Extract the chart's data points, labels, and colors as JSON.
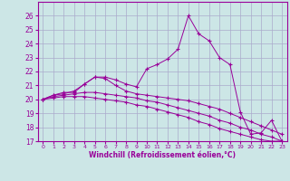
{
  "xlabel": "Windchill (Refroidissement éolien,°C)",
  "x": [
    0,
    1,
    2,
    3,
    4,
    5,
    6,
    7,
    8,
    9,
    10,
    11,
    12,
    13,
    14,
    15,
    16,
    17,
    18,
    19,
    20,
    21,
    22,
    23
  ],
  "line1": [
    20.0,
    20.3,
    20.5,
    20.5,
    21.1,
    21.6,
    21.6,
    21.4,
    21.1,
    20.9,
    22.2,
    22.5,
    22.9,
    23.6,
    26.0,
    24.7,
    24.2,
    23.0,
    22.5,
    19.1,
    17.5,
    17.6,
    18.5,
    17.0
  ],
  "line2": [
    20.0,
    20.3,
    20.4,
    20.6,
    21.1,
    21.6,
    21.5,
    21.0,
    20.6,
    20.4,
    20.3,
    20.2,
    20.1,
    20.0,
    19.9,
    19.7,
    19.5,
    19.3,
    19.0,
    18.7,
    18.4,
    18.1,
    17.8,
    17.5
  ],
  "line3": [
    20.0,
    20.2,
    20.3,
    20.4,
    20.5,
    20.5,
    20.4,
    20.3,
    20.2,
    20.1,
    19.9,
    19.8,
    19.6,
    19.4,
    19.2,
    19.0,
    18.8,
    18.5,
    18.3,
    18.0,
    17.8,
    17.5,
    17.3,
    17.0
  ],
  "line4": [
    20.0,
    20.1,
    20.2,
    20.2,
    20.2,
    20.1,
    20.0,
    19.9,
    19.8,
    19.6,
    19.5,
    19.3,
    19.1,
    18.9,
    18.7,
    18.4,
    18.2,
    17.9,
    17.7,
    17.5,
    17.3,
    17.1,
    17.0,
    17.0
  ],
  "line_color": "#990099",
  "bg_color": "#cce6e6",
  "grid_color": "#aaaacc",
  "ylim": [
    17,
    27
  ],
  "yticks": [
    17,
    18,
    19,
    20,
    21,
    22,
    23,
    24,
    25,
    26
  ],
  "xlim": [
    -0.5,
    23.5
  ],
  "xticks": [
    0,
    1,
    2,
    3,
    4,
    5,
    6,
    7,
    8,
    9,
    10,
    11,
    12,
    13,
    14,
    15,
    16,
    17,
    18,
    19,
    20,
    21,
    22,
    23
  ],
  "xtick_labels": [
    "0",
    "1",
    "2",
    "3",
    "4",
    "5",
    "6",
    "7",
    "8",
    "9",
    "10",
    "11",
    "12",
    "13",
    "14",
    "15",
    "16",
    "17",
    "18",
    "19",
    "20",
    "21",
    "22",
    "23"
  ]
}
